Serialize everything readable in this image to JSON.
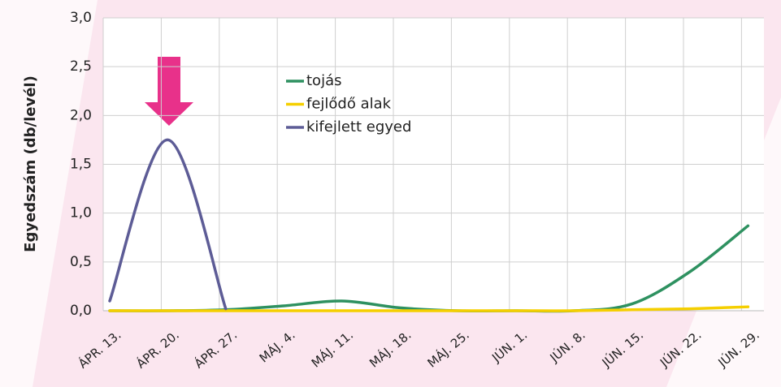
{
  "chart_data": {
    "type": "line",
    "y_label": "Egyedszám (db/levél)",
    "categories": [
      "ÁPR. 13.",
      "ÁPR. 20.",
      "ÁPR. 27.",
      "MÁJ. 4.",
      "MÁJ. 11.",
      "MÁJ. 18.",
      "MÁJ. 25.",
      "JÚN. 1.",
      "JÚN. 8.",
      "JÚN. 15.",
      "JÚN. 22.",
      "JÚN. 29."
    ],
    "series": [
      {
        "name": "tojás",
        "color": "#2e9160",
        "values": [
          0,
          0,
          0.01,
          0.05,
          0.1,
          0.03,
          0,
          0,
          0,
          0.07,
          0.4,
          0.87
        ]
      },
      {
        "name": "fejlődő alak",
        "color": "#f5cf00",
        "values": [
          0,
          0,
          0,
          0,
          0,
          0,
          0,
          0,
          0,
          0.01,
          0.02,
          0.04
        ]
      },
      {
        "name": "kifejlett egyed",
        "color": "#5d5c96",
        "values": [
          0.1,
          1.75,
          0.02,
          null,
          null,
          null,
          null,
          null,
          null,
          null,
          null,
          null
        ]
      }
    ],
    "ylim": [
      0,
      3
    ],
    "yticks": [
      {
        "value": 0,
        "label": "0,0"
      },
      {
        "value": 0.5,
        "label": "0,5"
      },
      {
        "value": 1,
        "label": "1,0"
      },
      {
        "value": 1.5,
        "label": "1,5"
      },
      {
        "value": 2,
        "label": "2,0"
      },
      {
        "value": 2.5,
        "label": "2,5"
      },
      {
        "value": 3,
        "label": "3,0"
      }
    ],
    "grid": true
  }
}
